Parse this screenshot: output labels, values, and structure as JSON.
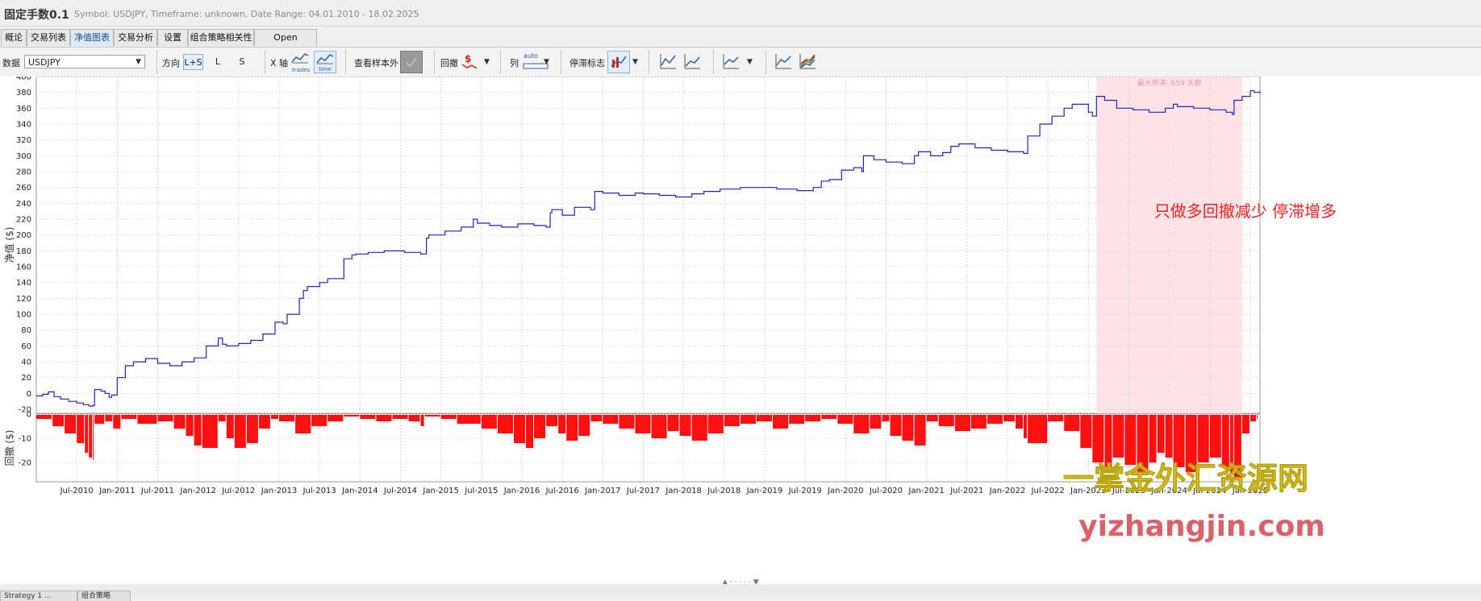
{
  "app": {
    "title": "固定手数0.1",
    "subtitle": "Symbol: USDJPY, Timeframe: unknown, Date Range: 04.01.2010 - 18.02.2025"
  },
  "tabs": [
    {
      "label": "概论"
    },
    {
      "label": "交易列表"
    },
    {
      "label": "净值图表",
      "active": true
    },
    {
      "label": "交易分析"
    },
    {
      "label": "设置"
    },
    {
      "label": "组合策略相关性"
    },
    {
      "label": "Open balances"
    }
  ],
  "toolbar": {
    "data_label": "数据",
    "data_value": "USDJPY",
    "direction_label": "方向",
    "direction_options": [
      "L+S",
      "L",
      "S"
    ],
    "direction_selected": "L+S",
    "xaxis_label": "X 轴",
    "xaxis_trades": "trades",
    "xaxis_time": "time",
    "oos_label": "查看样本外",
    "drawdown_label": "回撤",
    "series_label": "列",
    "series_auto": "auto",
    "stagnation_label": "停滞标志",
    "icons": [
      "line-chart-icon",
      "line-chart-icon",
      "line-chart-icon",
      "line-chart-icon",
      "multi-line-chart-icon"
    ]
  },
  "chart_data": [
    {
      "type": "line",
      "ylabel": "净值 ($)",
      "ylim": [
        -25,
        400
      ],
      "yticks": [
        -20,
        0,
        20,
        40,
        60,
        80,
        100,
        120,
        140,
        160,
        180,
        200,
        220,
        240,
        260,
        280,
        300,
        320,
        340,
        360,
        380,
        400
      ],
      "xlim": [
        2010.0,
        2025.12
      ],
      "xticks": [
        {
          "x": 2010.5,
          "label": "Jul-2010"
        },
        {
          "x": 2011.0,
          "label": "Jan-2011"
        },
        {
          "x": 2011.5,
          "label": "Jul-2011"
        },
        {
          "x": 2012.0,
          "label": "Jan-2012"
        },
        {
          "x": 2012.5,
          "label": "Jul-2012"
        },
        {
          "x": 2013.0,
          "label": "Jan-2013"
        },
        {
          "x": 2013.5,
          "label": "Jul-2013"
        },
        {
          "x": 2014.0,
          "label": "Jan-2014"
        },
        {
          "x": 2014.5,
          "label": "Jul-2014"
        },
        {
          "x": 2015.0,
          "label": "Jan-2015"
        },
        {
          "x": 2015.5,
          "label": "Jul-2015"
        },
        {
          "x": 2016.0,
          "label": "Jan-2016"
        },
        {
          "x": 2016.5,
          "label": "Jul-2016"
        },
        {
          "x": 2017.0,
          "label": "Jan-2017"
        },
        {
          "x": 2017.5,
          "label": "Jul-2017"
        },
        {
          "x": 2018.0,
          "label": "Jan-2018"
        },
        {
          "x": 2018.5,
          "label": "Jul-2018"
        },
        {
          "x": 2019.0,
          "label": "Jan-2019"
        },
        {
          "x": 2019.5,
          "label": "Jul-2019"
        },
        {
          "x": 2020.0,
          "label": "Jan-2020"
        },
        {
          "x": 2020.5,
          "label": "Jul-2020"
        },
        {
          "x": 2021.0,
          "label": "Jan-2021"
        },
        {
          "x": 2021.5,
          "label": "Jul-2021"
        },
        {
          "x": 2022.0,
          "label": "Jan-2022"
        },
        {
          "x": 2022.5,
          "label": "Jul-2022"
        },
        {
          "x": 2023.0,
          "label": "Jan-2023"
        },
        {
          "x": 2023.5,
          "label": "Jul-2023"
        },
        {
          "x": 2024.0,
          "label": "Jan-2024"
        },
        {
          "x": 2024.5,
          "label": "Jul-2024"
        },
        {
          "x": 2025.0,
          "label": "Jan-2025"
        }
      ],
      "series": [
        {
          "color": "#2323c8",
          "x": [
            2010.0,
            2010.08,
            2010.15,
            2010.22,
            2010.3,
            2010.4,
            2010.5,
            2010.58,
            2010.65,
            2010.7,
            2010.72,
            2010.8,
            2010.85,
            2010.9,
            2010.93,
            2011.0,
            2011.1,
            2011.2,
            2011.35,
            2011.5,
            2011.65,
            2011.8,
            2011.95,
            2012.1,
            2012.25,
            2012.3,
            2012.35,
            2012.5,
            2012.65,
            2012.8,
            2012.95,
            2013.05,
            2013.1,
            2013.25,
            2013.3,
            2013.35,
            2013.5,
            2013.6,
            2013.8,
            2013.9,
            2013.95,
            2014.1,
            2014.3,
            2014.55,
            2014.75,
            2014.82,
            2014.85,
            2015.05,
            2015.25,
            2015.4,
            2015.45,
            2015.6,
            2015.75,
            2015.95,
            2016.15,
            2016.3,
            2016.35,
            2016.37,
            2016.5,
            2016.65,
            2016.85,
            2016.9,
            2017.0,
            2017.2,
            2017.4,
            2017.5,
            2017.7,
            2017.9,
            2018.1,
            2018.25,
            2018.45,
            2018.7,
            2018.95,
            2019.15,
            2019.4,
            2019.6,
            2019.7,
            2019.8,
            2019.95,
            2020.1,
            2020.2,
            2020.22,
            2020.35,
            2020.5,
            2020.7,
            2020.85,
            2020.9,
            2021.05,
            2021.2,
            2021.3,
            2021.4,
            2021.6,
            2021.8,
            2022.0,
            2022.2,
            2022.25,
            2022.4,
            2022.55,
            2022.7,
            2022.8,
            2022.85,
            2023.0,
            2023.05,
            2023.1,
            2023.2,
            2023.35,
            2023.55,
            2023.75,
            2023.95,
            2024.05,
            2024.1,
            2024.3,
            2024.5,
            2024.7,
            2024.78,
            2024.8,
            2024.9,
            2025.0,
            2025.05,
            2025.12
          ],
          "y": [
            -3,
            -1,
            2,
            -4,
            -7,
            -10,
            -12,
            -14,
            -16,
            -15,
            5,
            3,
            0,
            -5,
            -2,
            20,
            35,
            40,
            44,
            38,
            35,
            40,
            45,
            60,
            70,
            62,
            60,
            63,
            67,
            75,
            90,
            88,
            100,
            120,
            130,
            135,
            140,
            145,
            170,
            175,
            176,
            178,
            180,
            178,
            176,
            196,
            200,
            205,
            210,
            220,
            215,
            212,
            210,
            214,
            212,
            210,
            228,
            232,
            225,
            235,
            232,
            255,
            253,
            250,
            253,
            252,
            250,
            248,
            252,
            255,
            258,
            260,
            260,
            258,
            256,
            260,
            268,
            270,
            282,
            285,
            280,
            300,
            295,
            292,
            290,
            300,
            305,
            300,
            304,
            312,
            315,
            310,
            307,
            305,
            303,
            325,
            340,
            350,
            360,
            365,
            365,
            355,
            350,
            375,
            370,
            360,
            358,
            355,
            360,
            365,
            362,
            360,
            358,
            355,
            352,
            370,
            375,
            382,
            380,
            382
          ]
        }
      ],
      "shaded_region": {
        "x_start": 2023.1,
        "x_end": 2024.9,
        "color": "#fde3e6",
        "label": "最大停滞: 659 天数"
      },
      "annotation": "只做多回撤减少 停滞增多",
      "grid": true
    },
    {
      "type": "bar",
      "ylabel": "回撤 ($)",
      "ylim": [
        -28,
        0
      ],
      "yticks": [
        0,
        -10,
        -20
      ],
      "color": "#ff1010",
      "x": [
        2010.0,
        2010.2,
        2010.35,
        2010.5,
        2010.6,
        2010.65,
        2010.7,
        2010.72,
        2010.85,
        2010.95,
        2011.05,
        2011.25,
        2011.5,
        2011.7,
        2011.85,
        2011.95,
        2012.05,
        2012.25,
        2012.35,
        2012.45,
        2012.6,
        2012.75,
        2012.9,
        2013.0,
        2013.2,
        2013.4,
        2013.6,
        2013.8,
        2014.0,
        2014.2,
        2014.4,
        2014.6,
        2014.75,
        2014.8,
        2015.0,
        2015.2,
        2015.5,
        2015.7,
        2015.9,
        2016.05,
        2016.15,
        2016.3,
        2016.45,
        2016.55,
        2016.7,
        2016.85,
        2017.0,
        2017.2,
        2017.4,
        2017.6,
        2017.8,
        2017.95,
        2018.1,
        2018.3,
        2018.5,
        2018.7,
        2018.9,
        2019.1,
        2019.3,
        2019.5,
        2019.7,
        2019.9,
        2020.1,
        2020.3,
        2020.45,
        2020.55,
        2020.7,
        2020.85,
        2021.0,
        2021.15,
        2021.35,
        2021.55,
        2021.75,
        2021.95,
        2022.1,
        2022.2,
        2022.25,
        2022.5,
        2022.7,
        2022.9,
        2023.05,
        2023.2,
        2023.3,
        2023.45,
        2023.6,
        2023.75,
        2023.85,
        2023.95,
        2024.05,
        2024.2,
        2024.35,
        2024.5,
        2024.65,
        2024.75,
        2024.8,
        2024.9,
        2025.0,
        2025.08
      ],
      "values": [
        -2,
        -5,
        -8,
        -12,
        -16,
        -18,
        -19,
        -4,
        -3,
        -6,
        -2,
        -4,
        -3,
        -6,
        -9,
        -13,
        -14,
        -3,
        -10,
        -14,
        -12,
        -6,
        -2,
        -3,
        -8,
        -5,
        -3,
        -1,
        -2,
        -3,
        -2,
        -3,
        -5,
        -1,
        -2,
        -4,
        -6,
        -8,
        -12,
        -14,
        -10,
        -5,
        -8,
        -11,
        -9,
        -3,
        -4,
        -6,
        -8,
        -10,
        -7,
        -9,
        -11,
        -8,
        -5,
        -4,
        -3,
        -6,
        -4,
        -3,
        -2,
        -4,
        -8,
        -6,
        -3,
        -9,
        -11,
        -13,
        -3,
        -5,
        -7,
        -6,
        -4,
        -3,
        -6,
        -10,
        -12,
        -3,
        -7,
        -14,
        -20,
        -22,
        -18,
        -21,
        -24,
        -20,
        -16,
        -18,
        -22,
        -24,
        -20,
        -18,
        -22,
        -25,
        -27,
        -8,
        -3,
        -2
      ],
      "grid": true
    }
  ],
  "watermark": {
    "cn": "一掌金外汇资源网",
    "url": "yizhangjin.com"
  },
  "bottom_tabs": [
    {
      "label": "Strategy 1 ..."
    },
    {
      "label": "组合策略"
    }
  ]
}
